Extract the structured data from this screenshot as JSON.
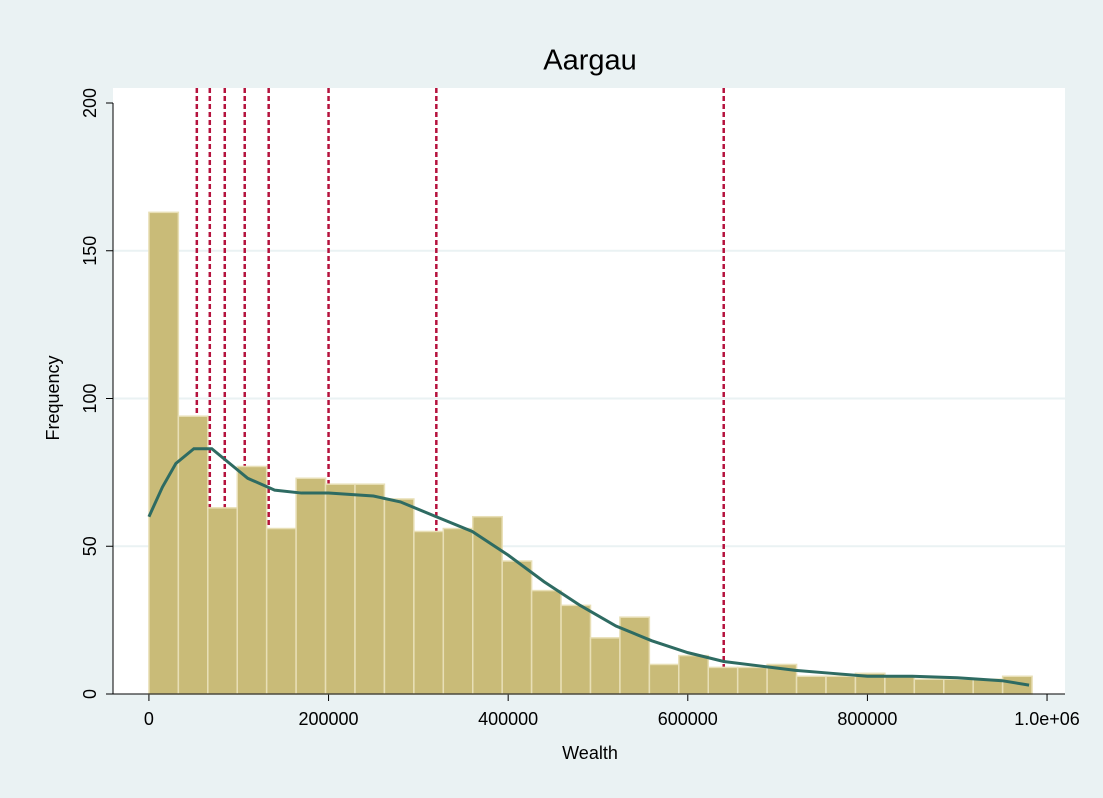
{
  "chart_data": {
    "type": "histogram",
    "title": "Aargau",
    "x_label": "Wealth",
    "y_label": "Frequency",
    "bins": [
      0,
      32778,
      65556,
      98334,
      131112,
      163890,
      196668,
      229446,
      262224,
      295002,
      327780,
      360558,
      393336,
      426114,
      458892,
      491670,
      524448,
      557226,
      590004,
      622782,
      655560,
      688338,
      721116,
      753894,
      786672,
      819450,
      852228,
      885006,
      917784,
      950562,
      983340
    ],
    "values": [
      163,
      94,
      63,
      77,
      56,
      73,
      71,
      71,
      66,
      55,
      56,
      60,
      45,
      35,
      30,
      19,
      26,
      10,
      13,
      9,
      9,
      10,
      6,
      6,
      7,
      6,
      5,
      5,
      5,
      6
    ],
    "color": "#c9bb78",
    "edge_color": "#e8dfb6",
    "density": {
      "color": "#2e6b62",
      "x": [
        0,
        15000,
        30000,
        50000,
        70000,
        90000,
        110000,
        140000,
        170000,
        200000,
        250000,
        280000,
        320000,
        360000,
        400000,
        440000,
        480000,
        520000,
        560000,
        600000,
        640000,
        680000,
        720000,
        760000,
        800000,
        850000,
        900000,
        950000,
        980000
      ],
      "values": [
        60,
        70,
        78,
        83,
        83,
        78,
        73,
        69,
        68,
        68,
        67,
        65,
        60,
        55,
        47,
        38,
        30,
        23,
        18,
        14,
        11,
        9.5,
        8,
        7,
        6,
        6,
        5.5,
        4.5,
        3
      ]
    },
    "reference_lines": {
      "color": "#b5123d",
      "x": [
        53333,
        67778,
        84444,
        106667,
        133333,
        200000,
        320000,
        640000
      ]
    },
    "xlim": [
      -40000,
      1020000
    ],
    "ylim": [
      0,
      200
    ],
    "xticks": [
      0,
      200000,
      400000,
      600000,
      800000,
      {
        "value": 1000000,
        "label": "1.0e+06"
      }
    ],
    "yticks": [
      0,
      50,
      100,
      150,
      200
    ],
    "grid": true
  }
}
